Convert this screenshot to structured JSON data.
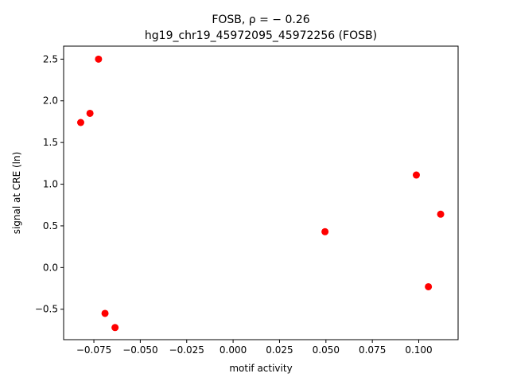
{
  "chart_data": {
    "type": "scatter",
    "title_line1": "FOSB, ρ = − 0.26",
    "title_line2": "hg19_chr19_45972095_45972256 (FOSB)",
    "xlabel": "motif activity",
    "ylabel": "signal at CRE (ln)",
    "xlim": [
      -0.0913,
      0.1212
    ],
    "ylim": [
      -0.865,
      2.656
    ],
    "xticks": [
      -0.075,
      -0.05,
      -0.025,
      0.0,
      0.025,
      0.05,
      0.075,
      0.1
    ],
    "xtick_labels": [
      "−0.075",
      "−0.050",
      "−0.025",
      "0.000",
      "0.025",
      "0.050",
      "0.075",
      "0.100"
    ],
    "yticks": [
      -0.5,
      0.0,
      0.5,
      1.0,
      1.5,
      2.0,
      2.5
    ],
    "ytick_labels": [
      "−0.5",
      "0.0",
      "0.5",
      "1.0",
      "1.5",
      "2.0",
      "2.5"
    ],
    "grid": false,
    "marker_color": "#ff0000",
    "points": [
      {
        "x": -0.0725,
        "y": 2.5
      },
      {
        "x": -0.0771,
        "y": 1.85
      },
      {
        "x": -0.0821,
        "y": 1.74
      },
      {
        "x": -0.069,
        "y": -0.55
      },
      {
        "x": -0.0636,
        "y": -0.72
      },
      {
        "x": 0.0495,
        "y": 0.43
      },
      {
        "x": 0.0987,
        "y": 1.11
      },
      {
        "x": 0.1118,
        "y": 0.64
      },
      {
        "x": 0.1052,
        "y": -0.23
      }
    ]
  }
}
